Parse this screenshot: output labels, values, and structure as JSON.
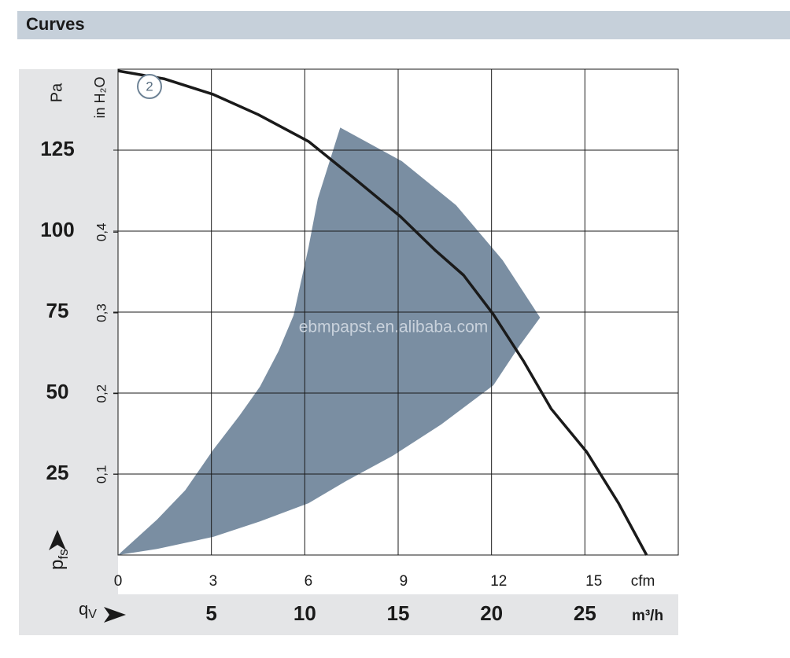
{
  "header": {
    "title": "Curves"
  },
  "chart_data": {
    "type": "line",
    "xlim": [
      0,
      30
    ],
    "xticks": [
      5,
      10,
      15,
      20,
      25
    ],
    "x_label": "m³/h",
    "x2lim": [
      0,
      17.66
    ],
    "x2ticks": [
      0,
      3,
      6,
      9,
      12,
      15
    ],
    "x2_label": "cfm",
    "ylim": [
      0,
      150
    ],
    "yticks": [
      25,
      50,
      75,
      100,
      125
    ],
    "y_label": "Pa",
    "y2lim": [
      0,
      0.602
    ],
    "y2ticks": [
      {
        "value": 0.1,
        "label": "0,1"
      },
      {
        "value": 0.2,
        "label": "0,2"
      },
      {
        "value": 0.3,
        "label": "0,3"
      },
      {
        "value": 0.4,
        "label": "0,4"
      }
    ],
    "y2_label": "in H₂O",
    "x_symbol": {
      "main": "q",
      "sub": "V"
    },
    "y_symbol": {
      "main": "p",
      "sub": "fs"
    },
    "grid": true,
    "series": [
      {
        "name": "2",
        "color": "#1a1a1a",
        "x": [
          0,
          2.5,
          5.1,
          7.5,
          10.2,
          12.5,
          15.1,
          17,
          18.5,
          20.1,
          21.7,
          23.2,
          25.1,
          26.8,
          28.3
        ],
        "values": [
          149.5,
          147,
          142.2,
          136,
          127.7,
          117,
          104.6,
          94,
          86.4,
          74.3,
          60,
          45.1,
          31.8,
          16,
          0
        ]
      }
    ],
    "operating_range": {
      "color": "#7a8ea2",
      "x": [
        0,
        2.1,
        3.6,
        5.1,
        6.5,
        7.6,
        8.6,
        9.4,
        10.2,
        10.7,
        11.9,
        15.2,
        18.1,
        20.6,
        22.6,
        21.5,
        20.1,
        17.3,
        14.7,
        12.2,
        10.2,
        7.6,
        5.1,
        2.1
      ],
      "values": [
        0,
        11,
        20,
        32.5,
        43,
        52,
        63,
        74,
        95,
        110,
        132,
        121.6,
        108,
        91,
        73.3,
        64.6,
        52.4,
        40.3,
        30.6,
        22.8,
        16,
        10.4,
        5.6,
        1.9
      ]
    },
    "watermark": "ebmpapst.en.alibaba.com"
  }
}
